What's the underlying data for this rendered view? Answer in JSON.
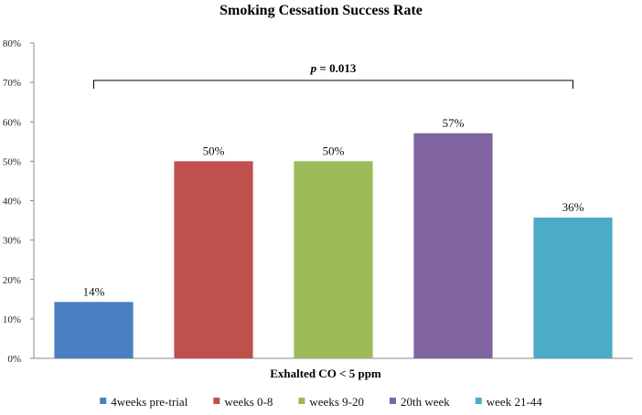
{
  "chart_data": {
    "type": "bar",
    "title": "Smoking Cessation Success Rate",
    "xlabel": "Exhalted CO < 5 ppm",
    "ylabel": "",
    "ylim": [
      0,
      80
    ],
    "y_ticks": [
      "0%",
      "10%",
      "20%",
      "30%",
      "40%",
      "50%",
      "60%",
      "70%",
      "80%"
    ],
    "categories": [
      "4weeks pre-trial",
      "weeks 0-8",
      "weeks 9-20",
      "20th week",
      "week 21-44"
    ],
    "values": [
      14.3,
      50,
      50,
      57.1,
      35.7
    ],
    "data_labels": [
      "14%",
      "50%",
      "50%",
      "57%",
      "36%"
    ],
    "colors": [
      "#4a7fc1",
      "#c0504d",
      "#9bbb59",
      "#8064a2",
      "#4bacc6"
    ],
    "annotation": {
      "p_label": "p",
      "p_value": " = 0.013"
    },
    "legend": [
      "4weeks pre-trial",
      "weeks 0-8",
      "weeks 9-20",
      "20th week",
      "week 21-44"
    ],
    "legend_position": "bottom",
    "grid": false
  }
}
